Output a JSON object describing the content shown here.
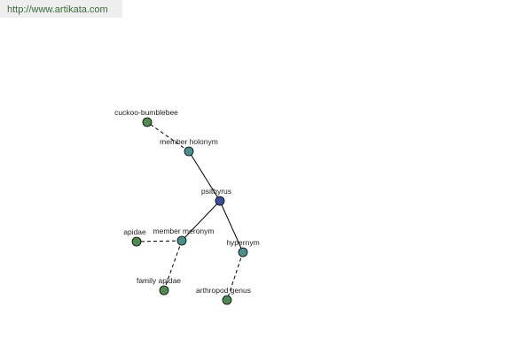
{
  "header": {
    "url": "http://www.artikata.com"
  },
  "nodes": [
    {
      "label": "psithyrus"
    },
    {
      "label": "member holonym"
    },
    {
      "label": "cuckoo-bumblebee"
    },
    {
      "label": "member meronym"
    },
    {
      "label": "apidae"
    },
    {
      "label": "family apidae"
    },
    {
      "label": "hypernym"
    },
    {
      "label": "arthropod genus"
    }
  ]
}
